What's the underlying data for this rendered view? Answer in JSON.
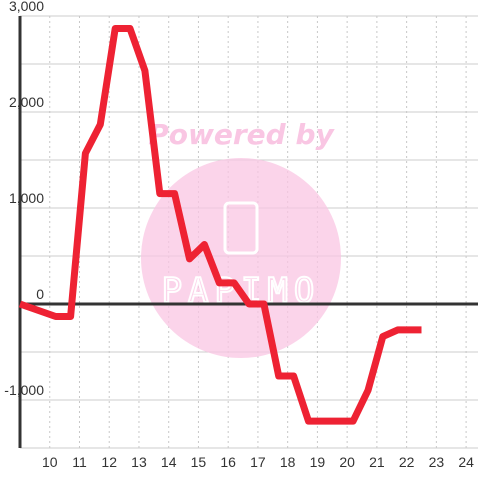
{
  "chart_data": {
    "type": "line",
    "x": [
      9,
      10.2,
      10.7,
      11.2,
      11.7,
      12.2,
      12.7,
      13.2,
      13.7,
      14.2,
      14.7,
      15.2,
      15.7,
      16.2,
      16.7,
      17.2,
      17.7,
      18.2,
      18.7,
      19.2,
      19.7,
      20.2,
      20.7,
      21.2,
      21.7,
      22.2,
      22.5
    ],
    "y": [
      0,
      -130,
      -130,
      1570,
      1870,
      2870,
      2870,
      2430,
      1150,
      1150,
      470,
      620,
      220,
      220,
      0,
      0,
      -750,
      -750,
      -1220,
      -1220,
      -1220,
      -1220,
      -900,
      -340,
      -270,
      -270,
      -270
    ],
    "xlim": [
      9,
      24.4
    ],
    "ylim": [
      -1500,
      3000
    ],
    "x_ticks": [
      10,
      11,
      12,
      13,
      14,
      15,
      16,
      17,
      18,
      19,
      20,
      21,
      22,
      23,
      24
    ],
    "y_ticks": [
      -1000,
      0,
      1000,
      2000,
      3000
    ],
    "y_tick_labels": [
      "-1,000",
      "0",
      "1,000",
      "2,000",
      "3,000"
    ],
    "line_color": "#ee2233",
    "grid": true,
    "watermark_text": "Powered by",
    "watermark_logo_text": "PAPIMO",
    "watermark_color": "#f9c6e3"
  }
}
